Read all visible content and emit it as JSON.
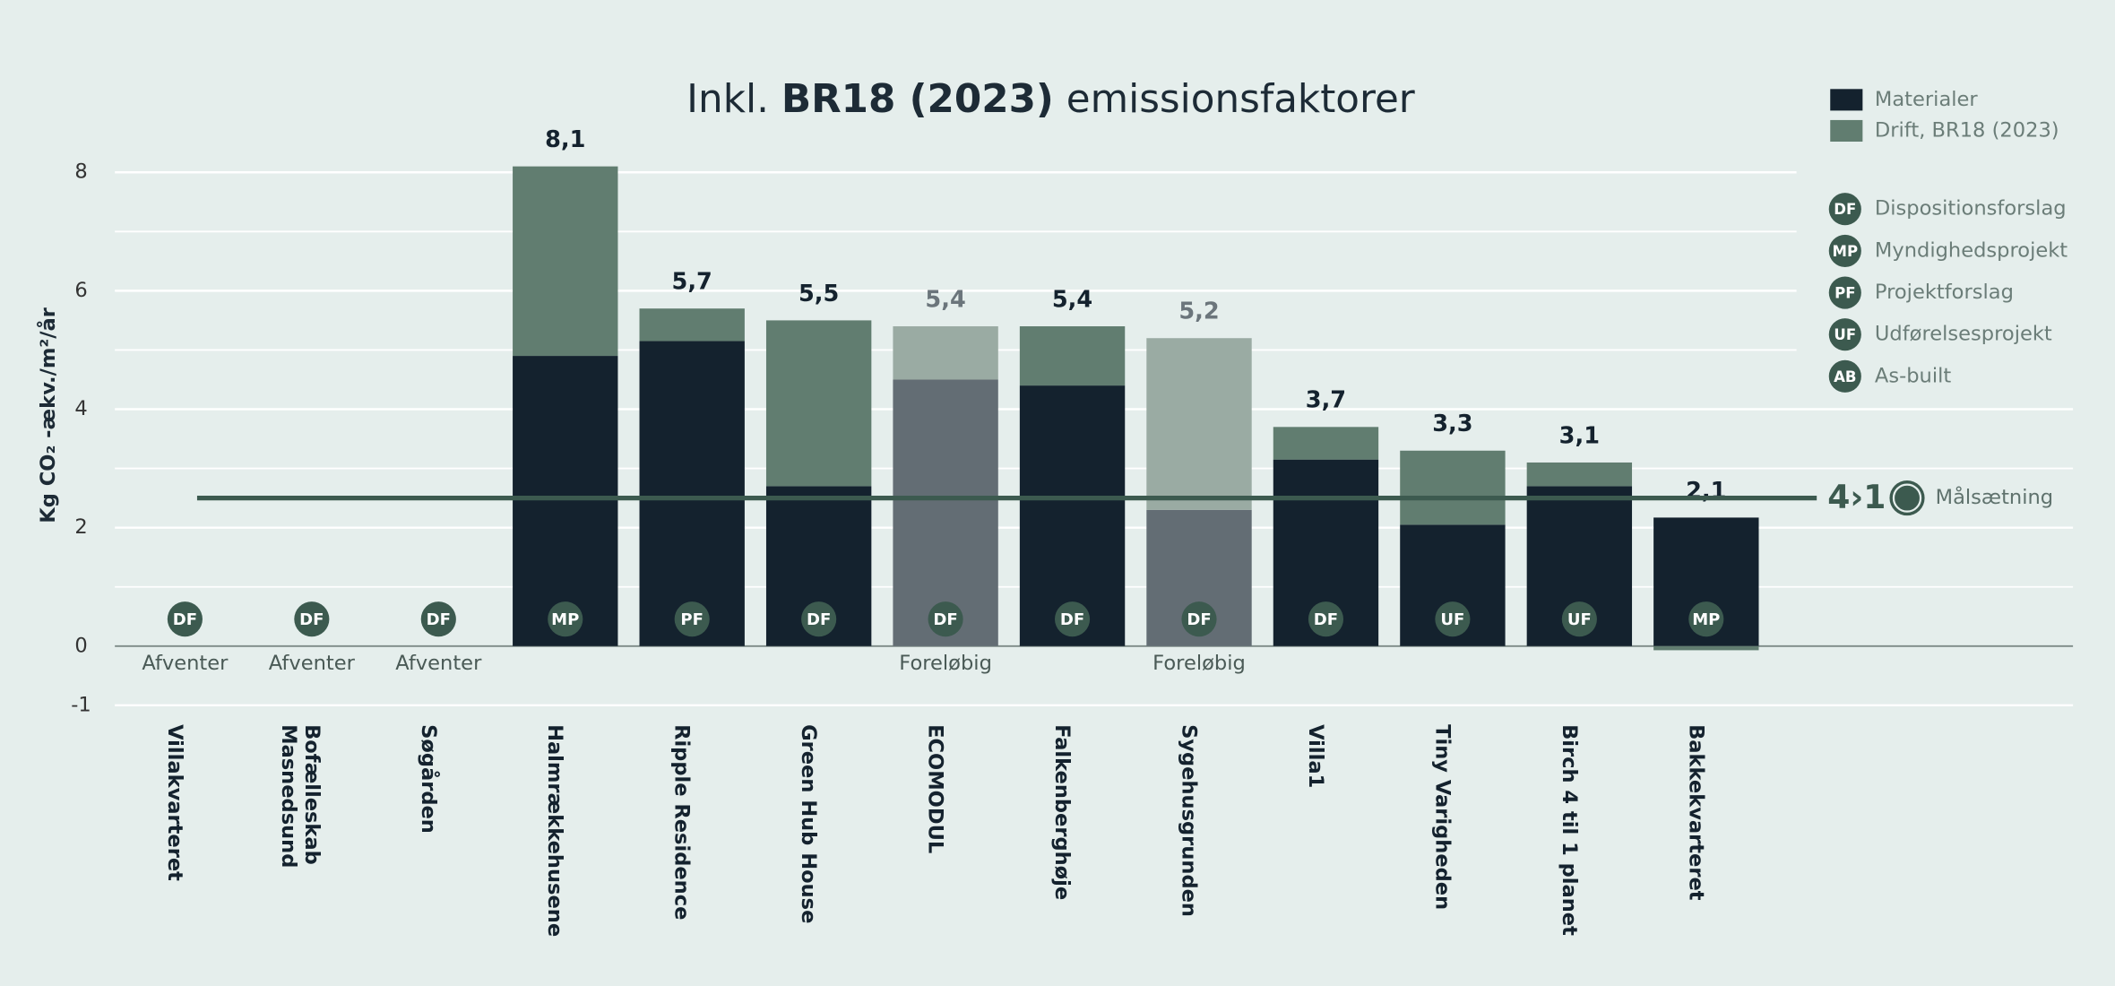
{
  "chart_data": {
    "type": "stacked_bar",
    "title_parts": [
      {
        "text": "Inkl. ",
        "bold": false
      },
      {
        "text": "BR18 (2023)",
        "bold": true
      },
      {
        "text": " emissionsfaktorer",
        "bold": false
      }
    ],
    "y_label": "Kg CO₂ -ækv./m²/år",
    "categories": [
      "Villakvarteret",
      "Bofælleskab\nMasnedsund",
      "Søgården",
      "Halmrækkehusene",
      "Ripple Residence",
      "Green Hub House",
      "ECOMODUL",
      "Falkenberghøje",
      "Sygehusgrunden",
      "Villa1",
      "Tiny Varigheden",
      "Birch 4 til 1 planet",
      "Bakkekvarteret"
    ],
    "series": [
      {
        "name": "Materialer",
        "color": "#14222e",
        "preliminary_color": "#636d74",
        "values": [
          null,
          null,
          null,
          4.9,
          5.15,
          2.7,
          4.5,
          4.4,
          2.3,
          3.15,
          2.05,
          2.7,
          2.17
        ]
      },
      {
        "name": "Drift, BR18 (2023)",
        "color": "#617d70",
        "preliminary_color": "#9aaba3",
        "values": [
          null,
          null,
          null,
          3.2,
          0.55,
          2.8,
          0.9,
          1.0,
          2.9,
          0.55,
          1.25,
          0.4,
          -0.07
        ]
      }
    ],
    "totals": {
      "values": [
        null,
        null,
        null,
        8.1,
        5.7,
        5.5,
        5.4,
        5.4,
        5.2,
        3.7,
        3.3,
        3.1,
        2.1
      ],
      "value_labels": [
        null,
        null,
        null,
        "8,1",
        "5,7",
        "5,5",
        "5,4",
        "5,4",
        "5,2",
        "3,7",
        "3,3",
        "3,1",
        "2,1"
      ]
    },
    "preliminary": [
      false,
      false,
      false,
      false,
      false,
      false,
      true,
      false,
      true,
      false,
      false,
      false,
      false
    ],
    "notes": [
      "Afventer",
      "Afventer",
      "Afventer",
      null,
      null,
      null,
      "Foreløbig",
      null,
      "Foreløbig",
      null,
      null,
      null,
      null
    ],
    "phases": [
      "DF",
      "DF",
      "DF",
      "MP",
      "PF",
      "DF",
      "DF",
      "DF",
      "DF",
      "DF",
      "UF",
      "UF",
      "MP"
    ],
    "phase_legend": [
      {
        "code": "DF",
        "name": "Dispositionsforslag"
      },
      {
        "code": "MP",
        "name": "Myndighedsprojekt"
      },
      {
        "code": "PF",
        "name": "Projektforslag"
      },
      {
        "code": "UF",
        "name": "Udførelsesprojekt"
      },
      {
        "code": "AB",
        "name": "As-built"
      }
    ],
    "target": {
      "value": 2.5,
      "label": "Målsætning",
      "logo": "4›1",
      "color": "#3c5a4f"
    },
    "ylim": [
      -1,
      8.5
    ],
    "yticks": [
      -1,
      0,
      2,
      4,
      6,
      8
    ],
    "minor_yticks": [
      1,
      3,
      5,
      7
    ],
    "grid": true
  }
}
